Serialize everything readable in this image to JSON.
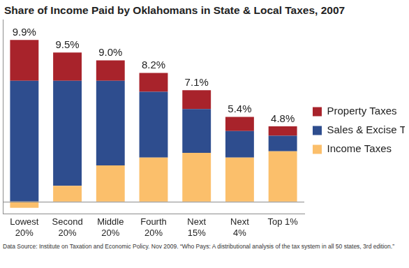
{
  "chart_data": {
    "type": "bar",
    "title": "Share of Income Paid by Oklahomans in State & Local Taxes, 2007",
    "source": "Data Source: Institute on Taxation and Economic Policy. Nov 2009. “Who Pays: A distributional analysis of the tax system in all 50 states, 3rd edition.”",
    "categories": [
      "Lowest 20%",
      "Second 20%",
      "Middle 20%",
      "Fourth 20%",
      "Next 15%",
      "Next 4%",
      "Top 1%"
    ],
    "series": [
      {
        "name": "Income Taxes",
        "color": "#fbbf6b",
        "values": [
          -0.4,
          1.0,
          2.3,
          2.8,
          3.1,
          2.8,
          3.2
        ]
      },
      {
        "name": "Sales & Excise Taxes",
        "color": "#2e4d8e",
        "values": [
          7.7,
          6.7,
          5.4,
          4.2,
          2.8,
          1.7,
          1.0
        ]
      },
      {
        "name": "Property Taxes",
        "color": "#a8232b",
        "values": [
          2.6,
          1.8,
          1.3,
          1.2,
          1.2,
          0.9,
          0.6
        ]
      }
    ],
    "totals": [
      9.9,
      9.5,
      9.0,
      8.2,
      7.1,
      5.4,
      4.8
    ],
    "total_labels": [
      "9.9%",
      "9.5%",
      "9.0%",
      "8.2%",
      "7.1%",
      "5.4%",
      "4.8%"
    ],
    "ylim": [
      -0.8,
      11.6
    ],
    "stacked": true,
    "grid": false,
    "legend": "right",
    "tick_labels": "x"
  }
}
